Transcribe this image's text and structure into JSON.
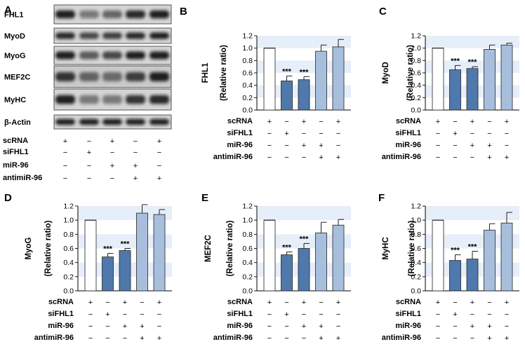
{
  "blot": {
    "panel_label": "A",
    "rows": [
      "FHL1",
      "MyoD",
      "MyoG",
      "MEF2C",
      "MyHC",
      "β-Actin"
    ],
    "conditions": [
      "scRNA",
      "siFHL1",
      "miR-96",
      "antimiR-96"
    ],
    "signs": [
      [
        "+",
        "−",
        "+",
        "−",
        "+"
      ],
      [
        "−",
        "+",
        "−",
        "−",
        "−"
      ],
      [
        "−",
        "−",
        "+",
        "+",
        "−"
      ],
      [
        "−",
        "−",
        "−",
        "+",
        "+"
      ]
    ]
  },
  "chart_data": [
    {
      "panel_label": "B",
      "type": "bar",
      "ylabel": [
        "FHL1",
        "(Relative ratio)"
      ],
      "ylim": [
        0,
        1.2
      ],
      "yticks": [
        "0.0",
        "0.2",
        "0.4",
        "0.6",
        "0.8",
        "1.0",
        "1.2"
      ],
      "values": [
        1.0,
        0.47,
        0.49,
        0.95,
        1.02
      ],
      "errors": [
        0.0,
        0.08,
        0.05,
        0.1,
        0.12
      ],
      "annotations": [
        "",
        "***",
        "***",
        "",
        ""
      ],
      "conditions": [
        "scRNA",
        "siFHL1",
        "miR-96",
        "antimiR-96"
      ],
      "signs": [
        [
          "+",
          "−",
          "+",
          "−",
          "+"
        ],
        [
          "−",
          "+",
          "−",
          "−",
          "−"
        ],
        [
          "−",
          "−",
          "+",
          "+",
          "−"
        ],
        [
          "−",
          "−",
          "−",
          "+",
          "+"
        ]
      ],
      "colors": [
        "#ffffff",
        "#4f79ad",
        "#4f79ad",
        "#a7bfdd",
        "#a7bfdd"
      ],
      "grid": "horizontal bands"
    },
    {
      "panel_label": "C",
      "type": "bar",
      "ylabel": [
        "MyoD",
        "(Relative ratio)"
      ],
      "ylim": [
        0,
        1.2
      ],
      "yticks": [
        "0.0",
        "0.2",
        "0.4",
        "0.6",
        "0.8",
        "1.0",
        "1.2"
      ],
      "values": [
        1.0,
        0.65,
        0.67,
        0.98,
        1.05
      ],
      "errors": [
        0.0,
        0.07,
        0.03,
        0.07,
        0.03
      ],
      "annotations": [
        "",
        "***",
        "***",
        "",
        ""
      ],
      "conditions": [
        "scRNA",
        "siFHL1",
        "miR-96",
        "antimiR-96"
      ],
      "signs": [
        [
          "+",
          "−",
          "+",
          "−",
          "+"
        ],
        [
          "−",
          "+",
          "−",
          "−",
          "−"
        ],
        [
          "−",
          "−",
          "+",
          "+",
          "−"
        ],
        [
          "−",
          "−",
          "−",
          "+",
          "+"
        ]
      ],
      "colors": [
        "#ffffff",
        "#4f79ad",
        "#4f79ad",
        "#a7bfdd",
        "#a7bfdd"
      ],
      "grid": "horizontal bands"
    },
    {
      "panel_label": "D",
      "type": "bar",
      "ylabel": [
        "MyoG",
        "(Relative ratio)"
      ],
      "ylim": [
        0,
        1.2
      ],
      "yticks": [
        "0.0",
        "0.2",
        "0.4",
        "0.6",
        "0.8",
        "1.0",
        "1.2"
      ],
      "values": [
        1.0,
        0.48,
        0.57,
        1.1,
        1.08
      ],
      "errors": [
        0.0,
        0.05,
        0.03,
        0.12,
        0.07
      ],
      "annotations": [
        "",
        "***",
        "***",
        "",
        ""
      ],
      "conditions": [
        "scRNA",
        "siFHL1",
        "miR-96",
        "antimiR-96"
      ],
      "signs": [
        [
          "+",
          "−",
          "+",
          "−",
          "+"
        ],
        [
          "−",
          "+",
          "−",
          "−",
          "−"
        ],
        [
          "−",
          "−",
          "+",
          "+",
          "−"
        ],
        [
          "−",
          "−",
          "−",
          "+",
          "+"
        ]
      ],
      "colors": [
        "#ffffff",
        "#4f79ad",
        "#4f79ad",
        "#a7bfdd",
        "#a7bfdd"
      ],
      "grid": "horizontal bands"
    },
    {
      "panel_label": "E",
      "type": "bar",
      "ylabel": [
        "MEF2C",
        "(Relative ratio)"
      ],
      "ylim": [
        0,
        1.2
      ],
      "yticks": [
        "0.0",
        "0.2",
        "0.4",
        "0.6",
        "0.8",
        "1.0",
        "1.2"
      ],
      "values": [
        1.0,
        0.51,
        0.6,
        0.82,
        0.93
      ],
      "errors": [
        0.0,
        0.04,
        0.07,
        0.15,
        0.08
      ],
      "annotations": [
        "",
        "***",
        "***",
        "",
        ""
      ],
      "conditions": [
        "scRNA",
        "siFHL1",
        "miR-96",
        "antimiR-96"
      ],
      "signs": [
        [
          "+",
          "−",
          "+",
          "−",
          "+"
        ],
        [
          "−",
          "+",
          "−",
          "−",
          "−"
        ],
        [
          "−",
          "−",
          "+",
          "+",
          "−"
        ],
        [
          "−",
          "−",
          "−",
          "+",
          "+"
        ]
      ],
      "colors": [
        "#ffffff",
        "#4f79ad",
        "#4f79ad",
        "#a7bfdd",
        "#a7bfdd"
      ],
      "grid": "horizontal bands"
    },
    {
      "panel_label": "F",
      "type": "bar",
      "ylabel": [
        "MyHC",
        "(Relative ratio)"
      ],
      "ylim": [
        0,
        1.2
      ],
      "yticks": [
        "0.0",
        "0.2",
        "0.4",
        "0.6",
        "0.8",
        "1.0",
        "1.2"
      ],
      "values": [
        1.0,
        0.43,
        0.45,
        0.86,
        0.96
      ],
      "errors": [
        0.0,
        0.08,
        0.11,
        0.09,
        0.15
      ],
      "annotations": [
        "",
        "***",
        "***",
        "",
        ""
      ],
      "conditions": [
        "scRNA",
        "siFHL1",
        "miR-96",
        "antimiR-96"
      ],
      "signs": [
        [
          "+",
          "−",
          "+",
          "−",
          "+"
        ],
        [
          "−",
          "+",
          "−",
          "−",
          "−"
        ],
        [
          "−",
          "−",
          "+",
          "+",
          "−"
        ],
        [
          "−",
          "−",
          "−",
          "+",
          "+"
        ]
      ],
      "colors": [
        "#ffffff",
        "#4f79ad",
        "#4f79ad",
        "#a7bfdd",
        "#a7bfdd"
      ],
      "grid": "horizontal bands"
    }
  ]
}
